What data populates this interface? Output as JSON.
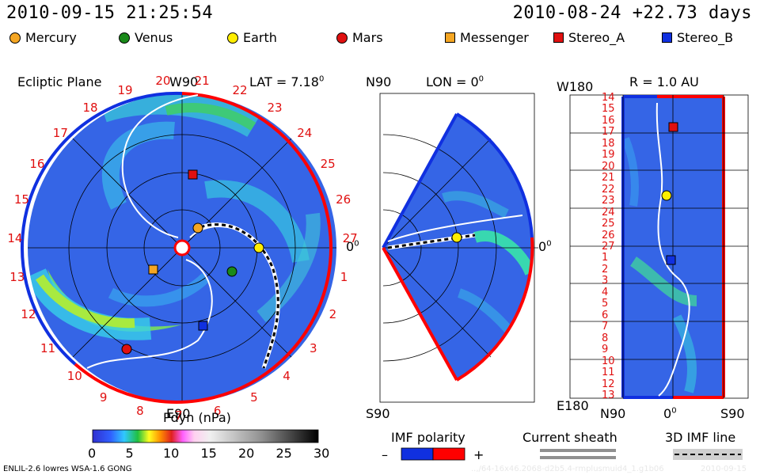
{
  "header": {
    "datetime": "2010-09-15 21:25:54",
    "reference": "2010-08-24 +22.73 days"
  },
  "legend": [
    {
      "name": "Mercury",
      "color": "#f5a623",
      "shape": "circle"
    },
    {
      "name": "Venus",
      "color": "#1a8a1a",
      "shape": "circle"
    },
    {
      "name": "Earth",
      "color": "#ffee00",
      "shape": "circle"
    },
    {
      "name": "Mars",
      "color": "#e01010",
      "shape": "circle"
    },
    {
      "name": "Messenger",
      "color": "#f5a623",
      "shape": "square"
    },
    {
      "name": "Stereo_A",
      "color": "#e01010",
      "shape": "square"
    },
    {
      "name": "Stereo_B",
      "color": "#1030e0",
      "shape": "square"
    }
  ],
  "panels": {
    "ecliptic": {
      "title": "Ecliptic Plane",
      "lat_label": "LAT = 7.18",
      "lat_unit": "0",
      "top_label": "W90",
      "bottom_label": "E90",
      "right_label": "0",
      "right_unit": "0",
      "longitude_ticks": [
        "19",
        "20",
        "21",
        "22",
        "23",
        "24",
        "25",
        "26",
        "27",
        "1",
        "2",
        "3",
        "4",
        "5",
        "6",
        "7",
        "8",
        "9",
        "10",
        "11",
        "12",
        "13",
        "14",
        "15",
        "16",
        "17",
        "18"
      ]
    },
    "meridional": {
      "top_label": "N90",
      "bottom_label": "S90",
      "lon_label": "LON = 0",
      "lon_unit": "0",
      "right_label": "0",
      "right_unit": "0"
    },
    "radial": {
      "title": "R = 1.0 AU",
      "top_left": "W180",
      "bottom_left": "E180",
      "bottom_n": "N90",
      "bottom_0": "0",
      "bottom_0_unit": "0",
      "bottom_s": "S90",
      "rotation_ticks": [
        "14",
        "15",
        "16",
        "17",
        "18",
        "19",
        "20",
        "21",
        "22",
        "23",
        "24",
        "25",
        "26",
        "27",
        "1",
        "2",
        "3",
        "4",
        "5",
        "6",
        "7",
        "8",
        "9",
        "10",
        "11",
        "12",
        "13"
      ]
    }
  },
  "colorbar": {
    "title": "Pdyn (nPa)",
    "ticks": [
      "0",
      "5",
      "10",
      "15",
      "20",
      "25",
      "30"
    ]
  },
  "imf": {
    "title": "IMF polarity",
    "minus": "–",
    "plus": "+",
    "negative_color": "#1030e0",
    "positive_color": "#ff0000"
  },
  "sheath": {
    "title": "Current sheath"
  },
  "imf_line": {
    "title": "3D IMF line"
  },
  "footer": {
    "model": "ENLIL-2.6 lowres WSA-1.6 GONG",
    "run_id": "..,/64-16x46.2068-d2b5.4-rmplusmuid4_1.g1b06",
    "date": "2010-09-15"
  },
  "chart_data": {
    "type": "heatmap",
    "quantity": "Pdyn (nPa)",
    "color_range": [
      0,
      30
    ],
    "bodies": [
      {
        "name": "Earth",
        "lon_deg": 0
      },
      {
        "name": "Mercury",
        "lon_deg": 45
      },
      {
        "name": "Venus",
        "lon_deg": -35
      },
      {
        "name": "Mars",
        "lon_deg": -130
      },
      {
        "name": "Messenger",
        "lon_deg": -150
      },
      {
        "name": "Stereo_A",
        "lon_deg": 80
      },
      {
        "name": "Stereo_B",
        "lon_deg": -80
      }
    ]
  }
}
